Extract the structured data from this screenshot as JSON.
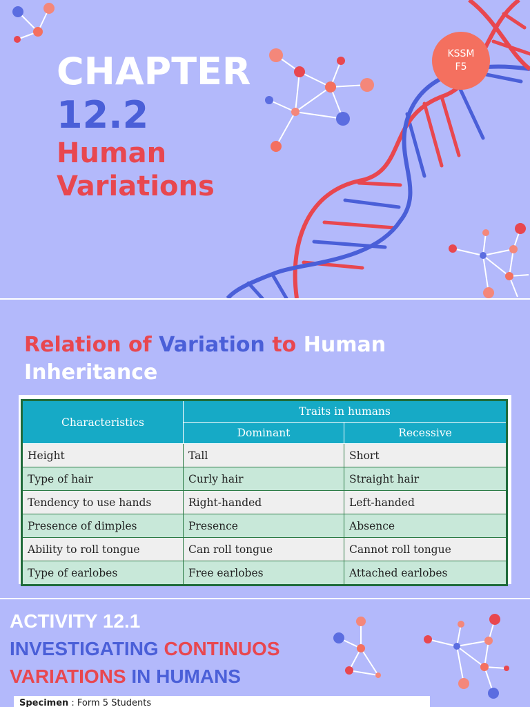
{
  "cover": {
    "chapter_label": "CHAPTER",
    "chapter_number": "12.2",
    "title_line1": "Human",
    "title_line2": "Variations",
    "badge_line1": "KSSM",
    "badge_line2": "F5"
  },
  "relation": {
    "title_part1": "Relation of",
    "title_part2": "Variation",
    "title_part3": "to",
    "title_part4": "Human",
    "title_part5": "Inheritance",
    "table": {
      "header_characteristics": "Characteristics",
      "header_traits": "Traits in humans",
      "header_dominant": "Dominant",
      "header_recessive": "Recessive",
      "rows": [
        {
          "characteristic": "Height",
          "dominant": "Tall",
          "recessive": "Short"
        },
        {
          "characteristic": "Type of hair",
          "dominant": "Curly hair",
          "recessive": "Straight hair"
        },
        {
          "characteristic": "Tendency to use hands",
          "dominant": "Right-handed",
          "recessive": "Left-handed"
        },
        {
          "characteristic": "Presence of dimples",
          "dominant": "Presence",
          "recessive": "Absence"
        },
        {
          "characteristic": "Ability to roll tongue",
          "dominant": "Can roll tongue",
          "recessive": "Cannot roll tongue"
        },
        {
          "characteristic": "Type of earlobes",
          "dominant": "Free earlobes",
          "recessive": "Attached earlobes"
        }
      ]
    }
  },
  "activity": {
    "label": "ACTIVITY 12.1",
    "line2_blue": "INVESTIGATING",
    "line2_red": "CONTINUOS",
    "line3_red": "VARIATIONS",
    "line3_blue": "IN HUMANS",
    "specimen_label": "Specimen",
    "specimen_value": ": Form 5 Students"
  },
  "colors": {
    "background": "#b3b9fb",
    "red": "#e8474f",
    "blue": "#4a5fd8",
    "table_header": "#16aac6",
    "table_border": "#1f6b3a"
  },
  "icons": [
    "dna-helix-icon",
    "molecule-icon"
  ]
}
